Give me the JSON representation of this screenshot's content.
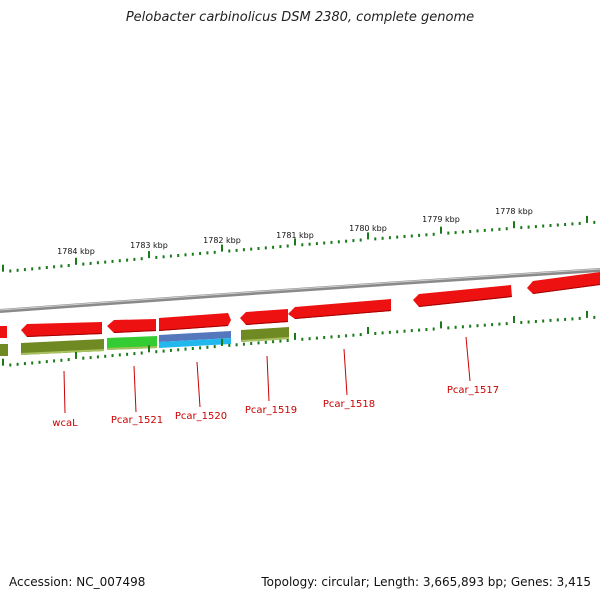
{
  "title": "Pelobacter carbinolicus DSM 2380, complete genome",
  "footer": {
    "accession_label": "Accession: NC_007498",
    "summary": "Topology: circular; Length: 3,665,893 bp; Genes: 3,415"
  },
  "colors": {
    "backbone": "#8a8a8a",
    "cds_red": "#ee1111",
    "gene_olive": "#6f8a22",
    "gene_green": "#33cc33",
    "gene_blue_top": "#5577bb",
    "gene_blue_bottom": "#22b8ee",
    "tick": "#1a7a1a",
    "label": "#cc0000"
  },
  "scale_labels": [
    "1784 kbp",
    "1783 kbp",
    "1782 kbp",
    "1781 kbp",
    "1780 kbp",
    "1779 kbp",
    "1778 kbp"
  ],
  "gene_labels": [
    "wcaL",
    "Pcar_1521",
    "Pcar_1520",
    "Pcar_1519",
    "Pcar_1518",
    "Pcar_1517"
  ]
}
